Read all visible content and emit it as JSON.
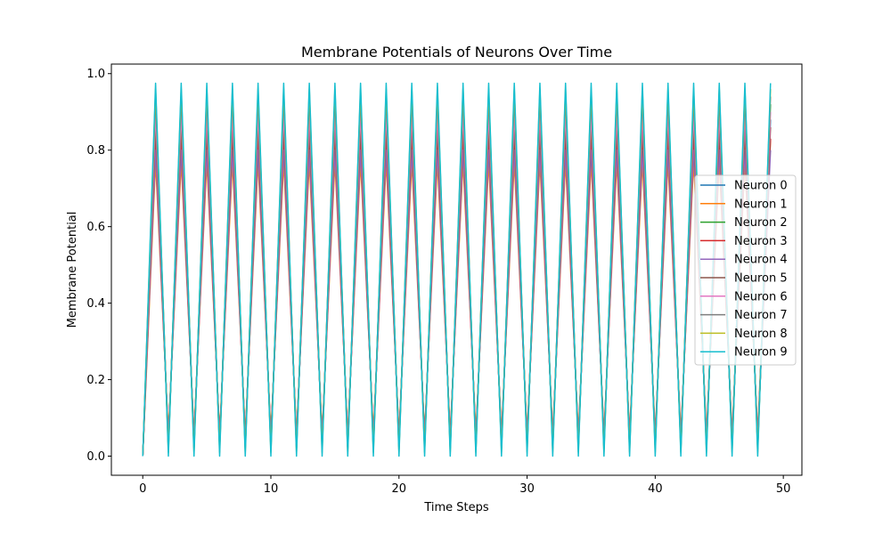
{
  "chart_data": {
    "type": "line",
    "title": "Membrane Potentials of Neurons Over Time",
    "xlabel": "Time Steps",
    "ylabel": "Membrane Potential",
    "xlim": [
      -2.45,
      51.45
    ],
    "ylim": [
      -0.05,
      1.025
    ],
    "xticks": [
      0,
      10,
      20,
      30,
      40,
      50
    ],
    "yticks": [
      0.0,
      0.2,
      0.4,
      0.6,
      0.8,
      1.0
    ],
    "ytick_labels": [
      "0.0",
      "0.2",
      "0.4",
      "0.6",
      "0.8",
      "1.0"
    ],
    "grid": false,
    "legend_position": "center-right",
    "x": [
      0,
      1,
      2,
      3,
      4,
      5,
      6,
      7,
      8,
      9,
      10,
      11,
      12,
      13,
      14,
      15,
      16,
      17,
      18,
      19,
      20,
      21,
      22,
      23,
      24,
      25,
      26,
      27,
      28,
      29,
      30,
      31,
      32,
      33,
      34,
      35,
      36,
      37,
      38,
      39,
      40,
      41,
      42,
      43,
      44,
      45,
      46,
      47,
      48,
      49
    ],
    "series": [
      {
        "name": "Neuron 0",
        "color": "#1f77b4",
        "values": [
          0,
          0.88,
          0.03,
          0.88,
          0.03,
          0.88,
          0.03,
          0.88,
          0.03,
          0.88,
          0.03,
          0.88,
          0.03,
          0.88,
          0.03,
          0.88,
          0.03,
          0.88,
          0.03,
          0.88,
          0.03,
          0.88,
          0.03,
          0.88,
          0.03,
          0.88,
          0.03,
          0.88,
          0.03,
          0.88,
          0.03,
          0.88,
          0.03,
          0.88,
          0.03,
          0.88,
          0.03,
          0.88,
          0.03,
          0.88,
          0.03,
          0.88,
          0.03,
          0.88,
          0.03,
          0.88,
          0.03,
          0.88,
          0.03,
          0.88
        ]
      },
      {
        "name": "Neuron 1",
        "color": "#ff7f0e",
        "values": [
          0,
          0.77,
          0.06,
          0.77,
          0.06,
          0.77,
          0.06,
          0.77,
          0.06,
          0.77,
          0.06,
          0.77,
          0.06,
          0.77,
          0.06,
          0.77,
          0.06,
          0.77,
          0.06,
          0.77,
          0.06,
          0.77,
          0.06,
          0.77,
          0.06,
          0.77,
          0.06,
          0.77,
          0.06,
          0.77,
          0.06,
          0.77,
          0.06,
          0.77,
          0.06,
          0.77,
          0.06,
          0.77,
          0.06,
          0.77,
          0.06,
          0.77,
          0.06,
          0.77,
          0.06,
          0.77,
          0.06,
          0.77,
          0.06,
          0.83
        ]
      },
      {
        "name": "Neuron 2",
        "color": "#2ca02c",
        "values": [
          0,
          0.92,
          0.02,
          0.92,
          0.02,
          0.92,
          0.02,
          0.92,
          0.02,
          0.92,
          0.02,
          0.92,
          0.02,
          0.92,
          0.02,
          0.92,
          0.02,
          0.92,
          0.02,
          0.92,
          0.02,
          0.92,
          0.02,
          0.92,
          0.02,
          0.92,
          0.02,
          0.92,
          0.02,
          0.92,
          0.02,
          0.92,
          0.02,
          0.92,
          0.02,
          0.92,
          0.02,
          0.92,
          0.02,
          0.92,
          0.02,
          0.92,
          0.02,
          0.92,
          0.02,
          0.92,
          0.02,
          0.92,
          0.02,
          0.92
        ]
      },
      {
        "name": "Neuron 3",
        "color": "#d62728",
        "values": [
          0,
          0.83,
          0.04,
          0.83,
          0.04,
          0.83,
          0.04,
          0.83,
          0.04,
          0.83,
          0.04,
          0.83,
          0.04,
          0.83,
          0.04,
          0.83,
          0.04,
          0.83,
          0.04,
          0.83,
          0.04,
          0.83,
          0.04,
          0.83,
          0.04,
          0.83,
          0.04,
          0.83,
          0.04,
          0.83,
          0.04,
          0.83,
          0.04,
          0.83,
          0.04,
          0.83,
          0.04,
          0.83,
          0.04,
          0.83,
          0.04,
          0.83,
          0.04,
          0.83,
          0.04,
          0.83,
          0.04,
          0.83,
          0.04,
          0.83
        ]
      },
      {
        "name": "Neuron 4",
        "color": "#9467bd",
        "values": [
          0,
          0.8,
          0.05,
          0.8,
          0.05,
          0.8,
          0.05,
          0.8,
          0.05,
          0.8,
          0.05,
          0.8,
          0.05,
          0.8,
          0.05,
          0.8,
          0.05,
          0.8,
          0.05,
          0.8,
          0.05,
          0.8,
          0.05,
          0.8,
          0.05,
          0.8,
          0.05,
          0.8,
          0.05,
          0.8,
          0.05,
          0.8,
          0.05,
          0.8,
          0.05,
          0.8,
          0.05,
          0.8,
          0.05,
          0.8,
          0.05,
          0.8,
          0.05,
          0.8,
          0.05,
          0.8,
          0.05,
          0.8,
          0.05,
          0.8
        ]
      },
      {
        "name": "Neuron 5",
        "color": "#8c564b",
        "values": [
          0,
          0.86,
          0.04,
          0.86,
          0.04,
          0.86,
          0.04,
          0.86,
          0.04,
          0.86,
          0.04,
          0.86,
          0.04,
          0.86,
          0.04,
          0.86,
          0.04,
          0.86,
          0.04,
          0.86,
          0.04,
          0.86,
          0.04,
          0.86,
          0.04,
          0.86,
          0.04,
          0.86,
          0.04,
          0.86,
          0.04,
          0.86,
          0.04,
          0.86,
          0.04,
          0.86,
          0.04,
          0.86,
          0.04,
          0.86,
          0.04,
          0.86,
          0.04,
          0.86,
          0.04,
          0.86,
          0.04,
          0.86,
          0.04,
          0.86
        ]
      },
      {
        "name": "Neuron 6",
        "color": "#e377c2",
        "values": [
          0,
          0.9,
          0.03,
          0.9,
          0.03,
          0.9,
          0.03,
          0.9,
          0.03,
          0.9,
          0.03,
          0.9,
          0.03,
          0.9,
          0.03,
          0.9,
          0.03,
          0.9,
          0.03,
          0.9,
          0.03,
          0.9,
          0.03,
          0.9,
          0.03,
          0.9,
          0.03,
          0.9,
          0.03,
          0.9,
          0.03,
          0.9,
          0.03,
          0.9,
          0.03,
          0.9,
          0.03,
          0.9,
          0.03,
          0.9,
          0.03,
          0.9,
          0.03,
          0.9,
          0.03,
          0.9,
          0.03,
          0.9,
          0.03,
          0.9
        ]
      },
      {
        "name": "Neuron 7",
        "color": "#7f7f7f",
        "values": [
          0,
          0.94,
          0.02,
          0.94,
          0.02,
          0.94,
          0.02,
          0.94,
          0.02,
          0.94,
          0.02,
          0.94,
          0.02,
          0.94,
          0.02,
          0.94,
          0.02,
          0.94,
          0.02,
          0.94,
          0.02,
          0.94,
          0.02,
          0.94,
          0.02,
          0.94,
          0.02,
          0.94,
          0.02,
          0.94,
          0.02,
          0.94,
          0.02,
          0.94,
          0.02,
          0.94,
          0.02,
          0.94,
          0.02,
          0.94,
          0.02,
          0.94,
          0.02,
          0.94,
          0.02,
          0.94,
          0.02,
          0.94,
          0.02,
          0.94
        ]
      },
      {
        "name": "Neuron 8",
        "color": "#bcbd22",
        "values": [
          0,
          0.96,
          0.01,
          0.96,
          0.01,
          0.96,
          0.01,
          0.96,
          0.01,
          0.96,
          0.01,
          0.96,
          0.01,
          0.96,
          0.01,
          0.96,
          0.01,
          0.96,
          0.01,
          0.96,
          0.01,
          0.96,
          0.01,
          0.96,
          0.01,
          0.96,
          0.01,
          0.96,
          0.01,
          0.96,
          0.01,
          0.96,
          0.01,
          0.96,
          0.01,
          0.96,
          0.01,
          0.96,
          0.01,
          0.96,
          0.01,
          0.96,
          0.01,
          0.96,
          0.01,
          0.96,
          0.01,
          0.96,
          0.01,
          0.96
        ]
      },
      {
        "name": "Neuron 9",
        "color": "#17becf",
        "values": [
          0,
          0.975,
          0,
          0.975,
          0,
          0.975,
          0,
          0.975,
          0,
          0.975,
          0,
          0.975,
          0,
          0.975,
          0,
          0.975,
          0,
          0.975,
          0,
          0.975,
          0,
          0.975,
          0,
          0.975,
          0,
          0.975,
          0,
          0.975,
          0,
          0.975,
          0,
          0.975,
          0,
          0.975,
          0,
          0.975,
          0,
          0.975,
          0,
          0.975,
          0,
          0.975,
          0,
          0.975,
          0,
          0.975,
          0,
          0.975,
          0,
          0.975
        ]
      }
    ]
  }
}
